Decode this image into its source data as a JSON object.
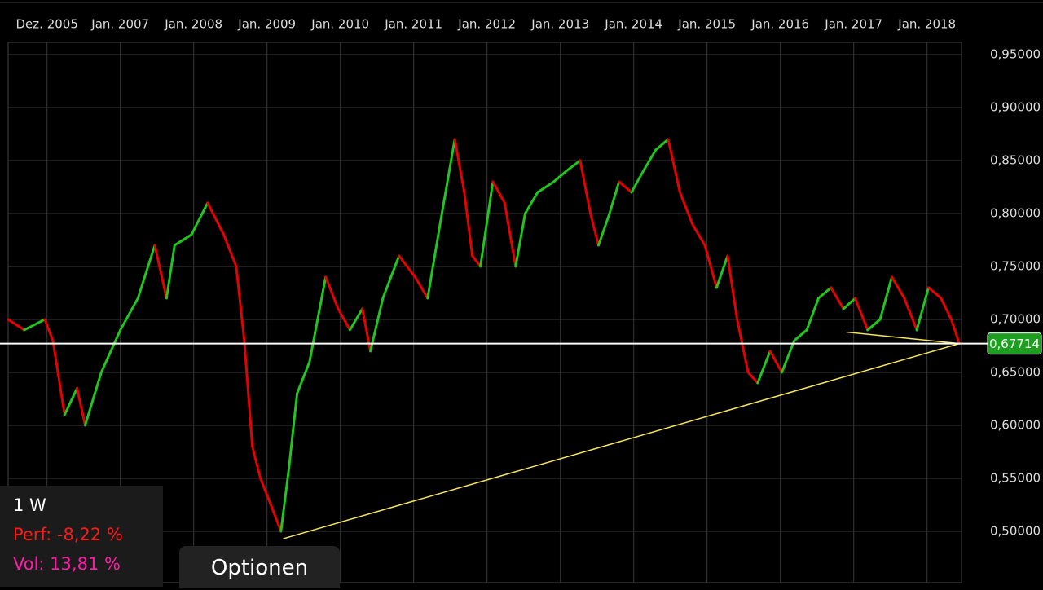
{
  "chart_data": {
    "type": "line",
    "x": [
      2005.47,
      2005.69,
      2005.97,
      2006.08,
      2006.24,
      2006.41,
      2006.52,
      2006.74,
      2007.0,
      2007.24,
      2007.47,
      2007.63,
      2007.74,
      2007.97,
      2008.19,
      2008.41,
      2008.58,
      2008.69,
      2008.8,
      2008.91,
      2009.08,
      2009.19,
      2009.3,
      2009.41,
      2009.58,
      2009.69,
      2009.8,
      2009.97,
      2010.13,
      2010.3,
      2010.41,
      2010.58,
      2010.8,
      2011.02,
      2011.19,
      2011.36,
      2011.56,
      2011.69,
      2011.8,
      2011.91,
      2012.08,
      2012.24,
      2012.39,
      2012.52,
      2012.69,
      2012.91,
      2013.08,
      2013.27,
      2013.41,
      2013.52,
      2013.67,
      2013.8,
      2013.97,
      2014.13,
      2014.3,
      2014.47,
      2014.63,
      2014.8,
      2014.97,
      2015.13,
      2015.28,
      2015.41,
      2015.56,
      2015.69,
      2015.86,
      2016.02,
      2016.19,
      2016.36,
      2016.52,
      2016.69,
      2016.86,
      2017.02,
      2017.19,
      2017.36,
      2017.52,
      2017.69,
      2017.86,
      2018.02,
      2018.19,
      2018.33,
      2018.44
    ],
    "series": [
      {
        "values": [
          0.7,
          0.69,
          0.7,
          0.68,
          0.61,
          0.635,
          0.6,
          0.65,
          0.69,
          0.72,
          0.77,
          0.72,
          0.77,
          0.78,
          0.81,
          0.78,
          0.75,
          0.68,
          0.58,
          0.55,
          0.52,
          0.5,
          0.56,
          0.63,
          0.66,
          0.7,
          0.74,
          0.71,
          0.69,
          0.71,
          0.67,
          0.72,
          0.76,
          0.74,
          0.72,
          0.79,
          0.87,
          0.82,
          0.76,
          0.75,
          0.83,
          0.81,
          0.75,
          0.8,
          0.82,
          0.83,
          0.84,
          0.85,
          0.8,
          0.77,
          0.8,
          0.83,
          0.82,
          0.84,
          0.86,
          0.87,
          0.82,
          0.79,
          0.77,
          0.73,
          0.76,
          0.7,
          0.65,
          0.64,
          0.67,
          0.65,
          0.68,
          0.69,
          0.72,
          0.73,
          0.71,
          0.72,
          0.69,
          0.7,
          0.74,
          0.72,
          0.69,
          0.73,
          0.72,
          0.7,
          0.67714
        ]
      }
    ],
    "up_color": "#22c41f",
    "down_color": "#e60000",
    "xlim": [
      2005.47,
      2018.47
    ],
    "xticks": [
      {
        "value": 2006,
        "label": "Dez. 2005"
      },
      {
        "value": 2007,
        "label": "Jan. 2007"
      },
      {
        "value": 2008,
        "label": "Jan. 2008"
      },
      {
        "value": 2009,
        "label": "Jan. 2009"
      },
      {
        "value": 2010,
        "label": "Jan. 2010"
      },
      {
        "value": 2011,
        "label": "Jan. 2011"
      },
      {
        "value": 2012,
        "label": "Jan. 2012"
      },
      {
        "value": 2013,
        "label": "Jan. 2013"
      },
      {
        "value": 2014,
        "label": "Jan. 2014"
      },
      {
        "value": 2015,
        "label": "Jan. 2015"
      },
      {
        "value": 2016,
        "label": "Jan. 2016"
      },
      {
        "value": 2017,
        "label": "Jan. 2017"
      },
      {
        "value": 2018,
        "label": "Jan. 2018"
      }
    ],
    "ylim": [
      0.4515,
      0.9615
    ],
    "yticks": [
      {
        "value": 0.5,
        "label": "0,50000"
      },
      {
        "value": 0.55,
        "label": "0,55000"
      },
      {
        "value": 0.6,
        "label": "0,60000"
      },
      {
        "value": 0.65,
        "label": "0,65000"
      },
      {
        "value": 0.7,
        "label": "0,70000"
      },
      {
        "value": 0.75,
        "label": "0,75000"
      },
      {
        "value": 0.8,
        "label": "0,80000"
      },
      {
        "value": 0.85,
        "label": "0,85000"
      },
      {
        "value": 0.9,
        "label": "0,90000"
      },
      {
        "value": 0.95,
        "label": "0,95000"
      }
    ],
    "grid": true,
    "last_price": {
      "value": 0.67714,
      "label": "0,67714"
    },
    "trendline_color": "#f5e65a",
    "trendlines": [
      {
        "x": [
          2009.22,
          2018.44
        ],
        "y": [
          0.493,
          0.67714
        ]
      },
      {
        "x": [
          2016.9,
          2018.44
        ],
        "y": [
          0.688,
          0.67714
        ]
      }
    ]
  },
  "panel": {
    "interval": "1 W",
    "perf": "Perf: -8,22 %",
    "vol": "Vol: 13,81 %"
  },
  "button": "Optionen"
}
